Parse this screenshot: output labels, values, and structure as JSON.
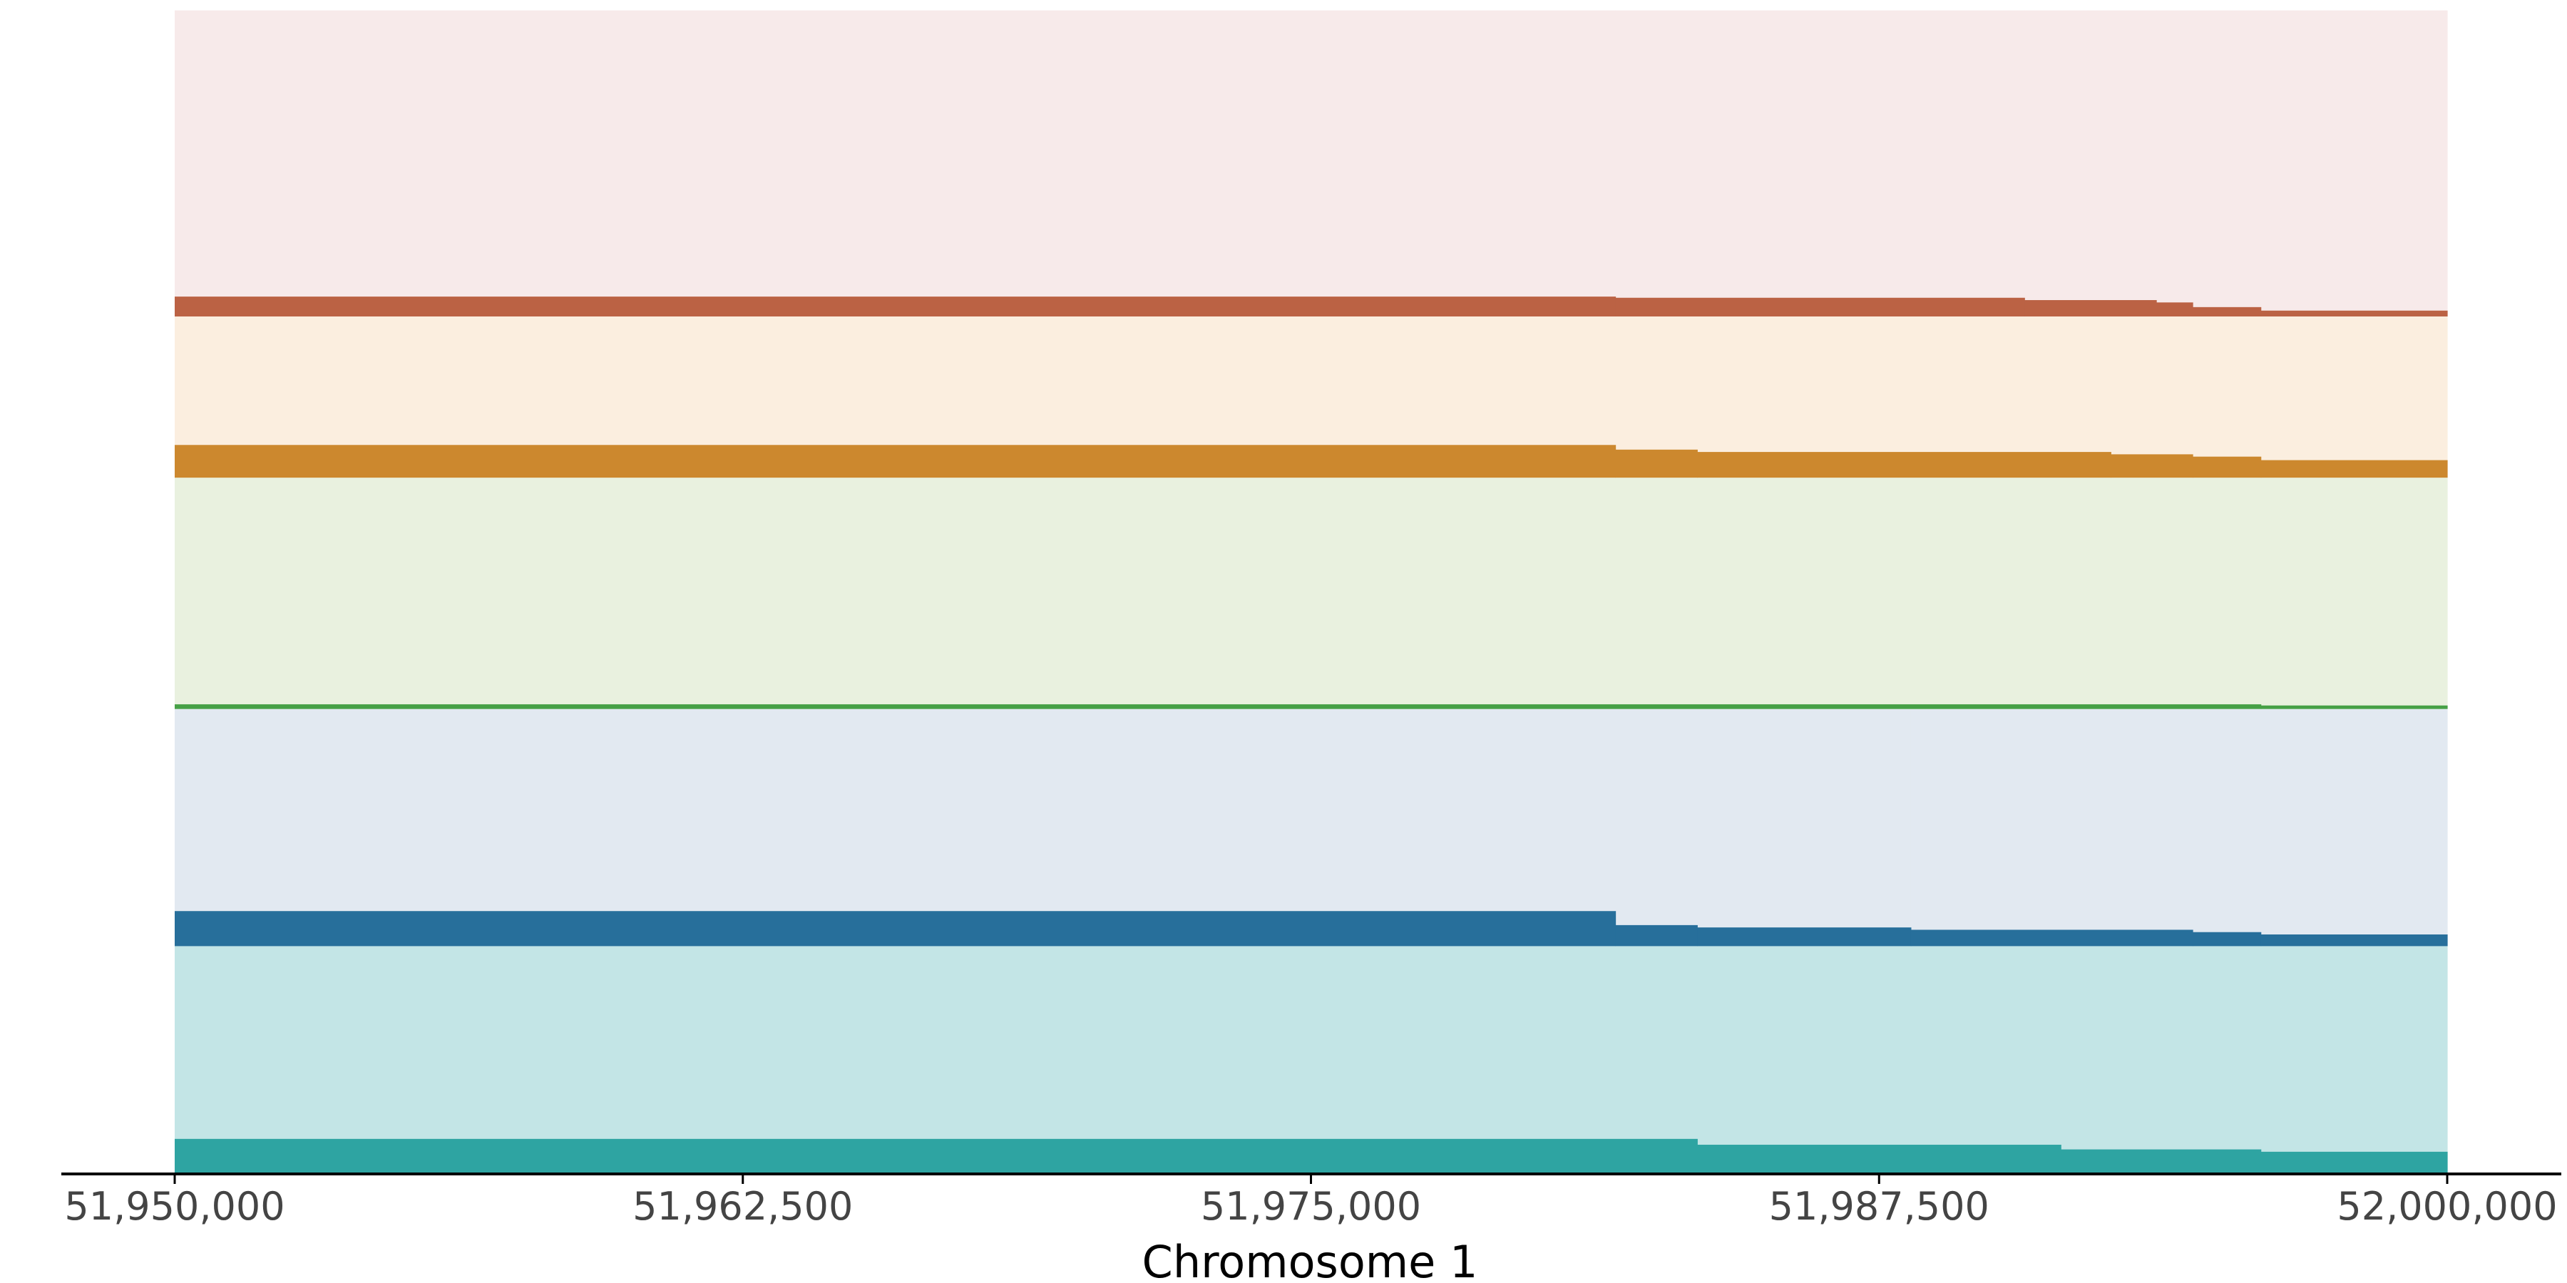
{
  "chart_data": {
    "type": "area",
    "xlabel": "Chromosome 1",
    "xlim": [
      51950000,
      52000000
    ],
    "ylim": [
      0,
      1
    ],
    "x_ticks": [
      51950000,
      51962500,
      51975000,
      51987500,
      52000000
    ],
    "x_tick_labels": [
      "51,950,000",
      "51,962,500",
      "51,975,000",
      "51,987,500",
      "52,000,000"
    ],
    "grid": false,
    "series": [
      {
        "color": "#2ea4a2",
        "fill": "#c3e5e6",
        "steps": [
          {
            "x0": 51950000,
            "x1": 51983500,
            "lower": 0.0,
            "line": 0.03,
            "upper": 0.195
          },
          {
            "x0": 51983500,
            "x1": 51991500,
            "lower": 0.0,
            "line": 0.025,
            "upper": 0.195
          },
          {
            "x0": 51991500,
            "x1": 51995900,
            "lower": 0.0,
            "line": 0.021,
            "upper": 0.195
          },
          {
            "x0": 51995900,
            "x1": 52000000,
            "lower": 0.0,
            "line": 0.019,
            "upper": 0.195
          }
        ]
      },
      {
        "color": "#276f9b",
        "fill": "#e2e9f1",
        "steps": [
          {
            "x0": 51950000,
            "x1": 51981700,
            "lower": 0.195,
            "line": 0.225,
            "upper": 0.398
          },
          {
            "x0": 51981700,
            "x1": 51983500,
            "lower": 0.195,
            "line": 0.213,
            "upper": 0.398
          },
          {
            "x0": 51983500,
            "x1": 51988200,
            "lower": 0.195,
            "line": 0.211,
            "upper": 0.398
          },
          {
            "x0": 51988200,
            "x1": 51994400,
            "lower": 0.195,
            "line": 0.209,
            "upper": 0.398
          },
          {
            "x0": 51994400,
            "x1": 51995900,
            "lower": 0.195,
            "line": 0.207,
            "upper": 0.398
          },
          {
            "x0": 51995900,
            "x1": 52000000,
            "lower": 0.195,
            "line": 0.205,
            "upper": 0.398
          }
        ]
      },
      {
        "color": "#46a046",
        "fill": "#e9f1df",
        "steps": [
          {
            "x0": 51950000,
            "x1": 51995900,
            "lower": 0.398,
            "line": 0.402,
            "upper": 0.596
          },
          {
            "x0": 51995900,
            "x1": 52000000,
            "lower": 0.398,
            "line": 0.401,
            "upper": 0.596
          }
        ]
      },
      {
        "color": "#cc882e",
        "fill": "#fbeedf",
        "steps": [
          {
            "x0": 51950000,
            "x1": 51981700,
            "lower": 0.596,
            "line": 0.624,
            "upper": 0.734
          },
          {
            "x0": 51981700,
            "x1": 51983500,
            "lower": 0.596,
            "line": 0.62,
            "upper": 0.734
          },
          {
            "x0": 51983500,
            "x1": 51992600,
            "lower": 0.596,
            "line": 0.618,
            "upper": 0.734
          },
          {
            "x0": 51992600,
            "x1": 51994400,
            "lower": 0.596,
            "line": 0.616,
            "upper": 0.734
          },
          {
            "x0": 51994400,
            "x1": 51995900,
            "lower": 0.596,
            "line": 0.614,
            "upper": 0.734
          },
          {
            "x0": 51995900,
            "x1": 52000000,
            "lower": 0.596,
            "line": 0.611,
            "upper": 0.734
          }
        ]
      },
      {
        "color": "#bb6244",
        "fill": "#f7eaea",
        "steps": [
          {
            "x0": 51950000,
            "x1": 51981700,
            "lower": 0.734,
            "line": 0.751,
            "upper": 0.996
          },
          {
            "x0": 51981700,
            "x1": 51990700,
            "lower": 0.734,
            "line": 0.75,
            "upper": 0.996
          },
          {
            "x0": 51990700,
            "x1": 51993600,
            "lower": 0.734,
            "line": 0.748,
            "upper": 0.996
          },
          {
            "x0": 51993600,
            "x1": 51994400,
            "lower": 0.734,
            "line": 0.746,
            "upper": 0.996
          },
          {
            "x0": 51994400,
            "x1": 51995900,
            "lower": 0.734,
            "line": 0.742,
            "upper": 0.996
          },
          {
            "x0": 51995900,
            "x1": 52000000,
            "lower": 0.734,
            "line": 0.739,
            "upper": 0.996
          }
        ]
      }
    ]
  }
}
